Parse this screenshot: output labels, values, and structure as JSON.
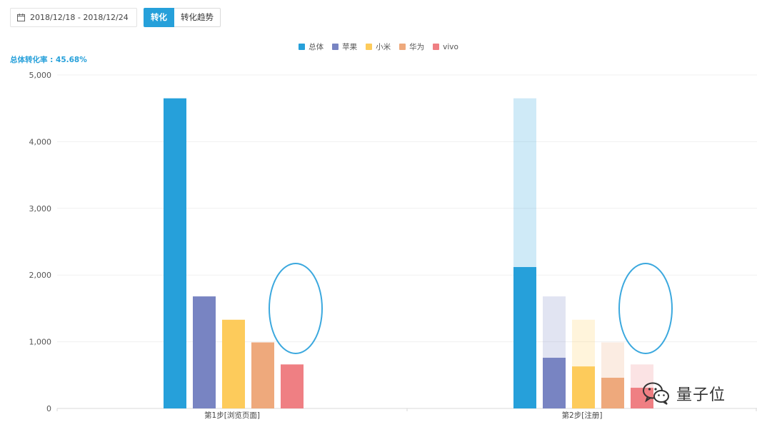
{
  "toolbar": {
    "date_range": "2018/12/18 - 2018/12/24",
    "tabs": [
      {
        "label": "转化",
        "active": true
      },
      {
        "label": "转化趋势",
        "active": false
      }
    ]
  },
  "summary": {
    "conversion_rate_label": "总体转化率 : 45.68%"
  },
  "watermark": {
    "text": "量子位"
  },
  "chart_data": {
    "type": "bar",
    "categories": [
      "第1步[浏览页面]",
      "第2步[注册]"
    ],
    "series": [
      {
        "name": "总体",
        "color": "#26a0da",
        "values": [
          4650,
          2120
        ]
      },
      {
        "name": "苹果",
        "color": "#7884c2",
        "values": [
          1680,
          760
        ]
      },
      {
        "name": "小米",
        "color": "#fdcb5b",
        "values": [
          1330,
          630
        ]
      },
      {
        "name": "华为",
        "color": "#eea97c",
        "values": [
          990,
          460
        ]
      },
      {
        "name": "vivo",
        "color": "#ef7f83",
        "values": [
          660,
          310
        ]
      }
    ],
    "ghost_values": [
      4650,
      1680,
      1330,
      990,
      660
    ],
    "ylim": [
      0,
      5000
    ],
    "yticks": [
      0,
      1000,
      2000,
      3000,
      4000,
      5000
    ],
    "ytick_labels": [
      "0",
      "1,000",
      "2,000",
      "3,000",
      "4,000",
      "5,000"
    ],
    "legend_position": "top-center",
    "grid": true
  }
}
